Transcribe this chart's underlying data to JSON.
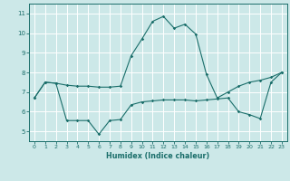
{
  "bg_color": "#cce8e8",
  "line_color": "#1a6e6a",
  "grid_color": "#ffffff",
  "xlabel": "Humidex (Indice chaleur)",
  "xlim": [
    -0.5,
    23.5
  ],
  "ylim": [
    4.5,
    11.5
  ],
  "xticks": [
    0,
    1,
    2,
    3,
    4,
    5,
    6,
    7,
    8,
    9,
    10,
    11,
    12,
    13,
    14,
    15,
    16,
    17,
    18,
    19,
    20,
    21,
    22,
    23
  ],
  "yticks": [
    5,
    6,
    7,
    8,
    9,
    10,
    11
  ],
  "line1_x": [
    0,
    1,
    2,
    3,
    4,
    5,
    6,
    7,
    8,
    9,
    10,
    11,
    12,
    13,
    14,
    15,
    16,
    17,
    18,
    19,
    20,
    21,
    22,
    23
  ],
  "line1_y": [
    6.7,
    7.5,
    7.45,
    7.35,
    7.3,
    7.3,
    7.25,
    7.25,
    7.3,
    8.85,
    9.7,
    10.6,
    10.85,
    10.25,
    10.45,
    9.95,
    7.9,
    6.7,
    7.0,
    7.3,
    7.5,
    7.6,
    7.75,
    8.0
  ],
  "line2_x": [
    0,
    1,
    2,
    3,
    4,
    5,
    6,
    7,
    8,
    9,
    10,
    11,
    12,
    13,
    14,
    15,
    16,
    17,
    18,
    19,
    20,
    21,
    22,
    23
  ],
  "line2_y": [
    6.7,
    7.5,
    7.45,
    5.55,
    5.55,
    5.55,
    4.85,
    5.55,
    5.6,
    6.35,
    6.5,
    6.55,
    6.6,
    6.6,
    6.6,
    6.55,
    6.6,
    6.65,
    6.7,
    6.0,
    5.85,
    5.65,
    7.5,
    8.0
  ]
}
